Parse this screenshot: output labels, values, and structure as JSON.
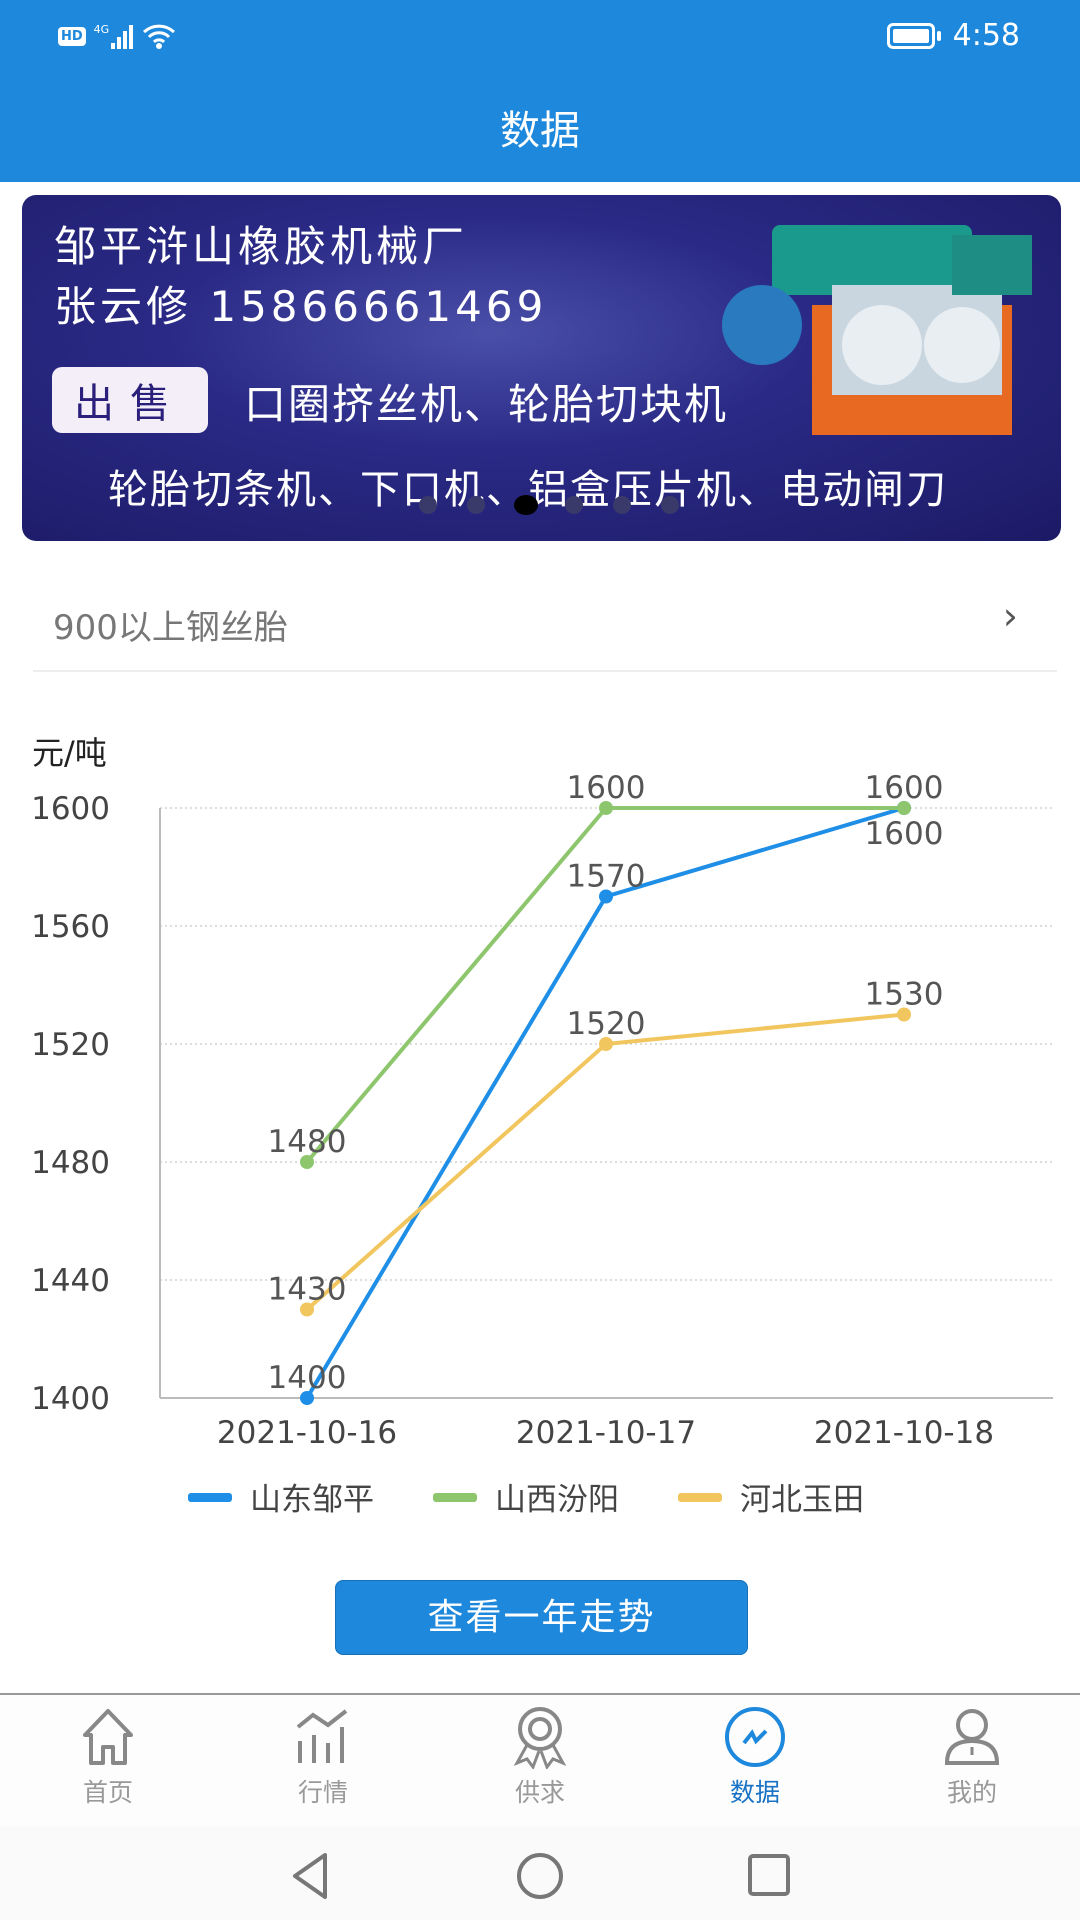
{
  "status_bar": {
    "network": "4G",
    "hd": "HD",
    "time": "4:58"
  },
  "header": {
    "title": "数据"
  },
  "banner": {
    "line1": "邹平浒山橡胶机械厂",
    "line2": "张云修 15866661469",
    "badge": "出售",
    "line3": "口圈挤丝机、轮胎切块机",
    "line4": "轮胎切条机、下口机、铝盒压片机、电动闸刀",
    "dots": 6,
    "active_dot": 3
  },
  "category": {
    "label": "900以上钢丝胎"
  },
  "chart_data": {
    "type": "line",
    "ylabel": "元/吨",
    "categories": [
      "2021-10-16",
      "2021-10-17",
      "2021-10-18"
    ],
    "ylim": [
      1400,
      1600
    ],
    "yticks": [
      1400,
      1440,
      1480,
      1520,
      1560,
      1600
    ],
    "grid": true,
    "legend": "bottom",
    "series": [
      {
        "name": "山东邹平",
        "color": "#1e8ee6",
        "values": [
          1400,
          1570,
          1600
        ]
      },
      {
        "name": "山西汾阳",
        "color": "#8dc66d",
        "values": [
          1480,
          1600,
          1600
        ]
      },
      {
        "name": "河北玉田",
        "color": "#f2c65e",
        "values": [
          1430,
          1520,
          1530
        ]
      }
    ]
  },
  "button": {
    "label": "查看一年走势"
  },
  "bottom_nav": {
    "items": [
      {
        "label": "首页",
        "icon": "home-icon"
      },
      {
        "label": "行情",
        "icon": "market-chart-icon"
      },
      {
        "label": "供求",
        "icon": "award-ribbon-icon"
      },
      {
        "label": "数据",
        "icon": "data-trend-icon",
        "active": true
      },
      {
        "label": "我的",
        "icon": "user-icon"
      }
    ],
    "active_color": "#1a72c4"
  }
}
